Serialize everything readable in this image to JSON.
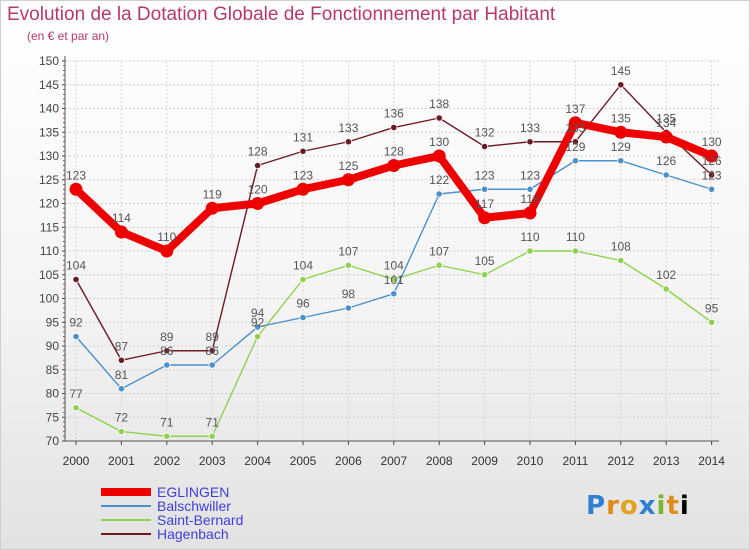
{
  "header": {
    "title": "Evolution de la Dotation Globale de Fonctionnement par Habitant",
    "subtitle": "(en € et par an)"
  },
  "logo": {
    "text": "Proxiti"
  },
  "chart_data": {
    "type": "line",
    "categories": [
      "2000",
      "2001",
      "2002",
      "2003",
      "2004",
      "2005",
      "2006",
      "2007",
      "2008",
      "2009",
      "2010",
      "2011",
      "2012",
      "2013",
      "2014"
    ],
    "ylim": [
      70,
      150
    ],
    "yticks": [
      70,
      75,
      80,
      85,
      90,
      95,
      100,
      105,
      110,
      115,
      120,
      125,
      130,
      135,
      140,
      145,
      150
    ],
    "grid": true,
    "legend_position": "bottom-left",
    "series": [
      {
        "name": "Hagenbach",
        "color": "#6b1a22",
        "values": [
          104,
          87,
          89,
          89,
          128,
          131,
          133,
          136,
          138,
          132,
          133,
          133,
          145,
          135,
          126
        ]
      },
      {
        "name": "Saint-Bernard",
        "color": "#8fd14f",
        "values": [
          77,
          72,
          71,
          71,
          92,
          104,
          107,
          104,
          107,
          105,
          110,
          110,
          108,
          102,
          95
        ]
      },
      {
        "name": "Balschwiller",
        "color": "#4a90cc",
        "values": [
          92,
          81,
          86,
          86,
          94,
          96,
          98,
          101,
          122,
          123,
          123,
          129,
          129,
          126,
          123
        ]
      },
      {
        "name": "EGLINGEN",
        "color": "#ee0000",
        "values": [
          123,
          114,
          110,
          119,
          120,
          123,
          125,
          128,
          130,
          117,
          118,
          137,
          135,
          134,
          130
        ]
      }
    ],
    "legend_order": [
      "EGLINGEN",
      "Balschwiller",
      "Saint-Bernard",
      "Hagenbach"
    ]
  }
}
